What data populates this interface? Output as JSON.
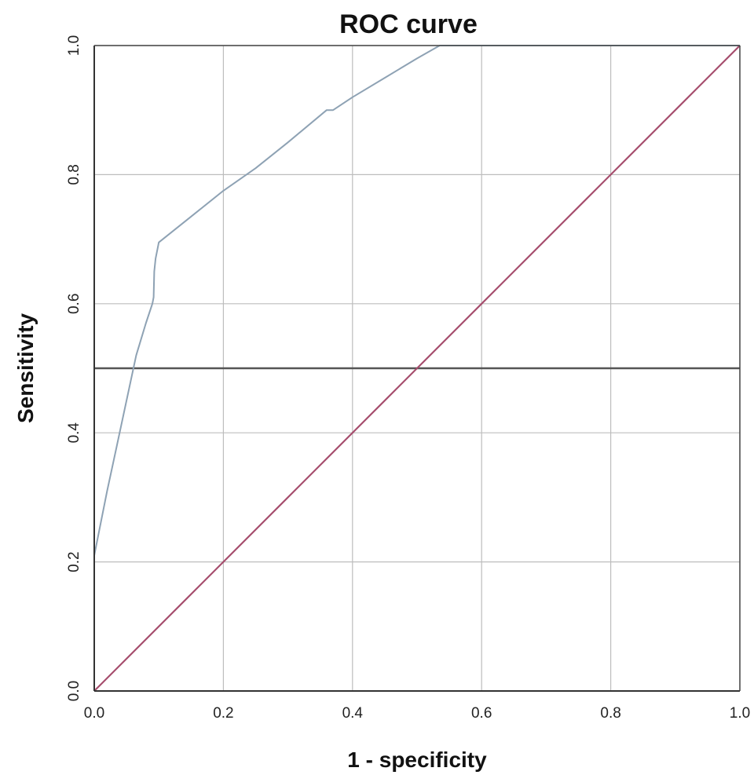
{
  "chart_data": {
    "type": "line",
    "title": "ROC curve",
    "xlabel": "1 - specificity",
    "ylabel": "Sensitivity",
    "xlim": [
      0,
      1
    ],
    "ylim": [
      0,
      1
    ],
    "grid": true,
    "x_ticks": [
      "0.0",
      "0.2",
      "0.4",
      "0.6",
      "0.8",
      "1.0"
    ],
    "y_ticks": [
      "0.0",
      "0.2",
      "0.4",
      "0.6",
      "0.8",
      "1.0"
    ],
    "x_tick_values": [
      0,
      0.2,
      0.4,
      0.6,
      0.8,
      1.0
    ],
    "y_tick_values": [
      0,
      0.2,
      0.4,
      0.6,
      0.8,
      1.0
    ],
    "series": [
      {
        "color": "#8ea2b4",
        "x": [
          0,
          0,
          0.01,
          0.02,
          0.035,
          0.05,
          0.065,
          0.08,
          0.09,
          0.092,
          0.093,
          0.095,
          0.1,
          0.15,
          0.2,
          0.25,
          0.3,
          0.36,
          0.37,
          0.4,
          0.45,
          0.5,
          0.535,
          0.6,
          0.8,
          1.0
        ],
        "y": [
          0,
          0.21,
          0.26,
          0.31,
          0.38,
          0.45,
          0.52,
          0.57,
          0.6,
          0.61,
          0.65,
          0.67,
          0.695,
          0.735,
          0.775,
          0.81,
          0.85,
          0.9,
          0.9,
          0.92,
          0.95,
          0.98,
          1.0,
          1.0,
          1.0,
          1.0
        ]
      },
      {
        "color": "#a64d6d",
        "x": [
          0,
          1
        ],
        "y": [
          0,
          1
        ]
      }
    ],
    "reference_lines": [
      {
        "orientation": "horizontal",
        "value": 0.5,
        "color": "#555555"
      }
    ]
  }
}
